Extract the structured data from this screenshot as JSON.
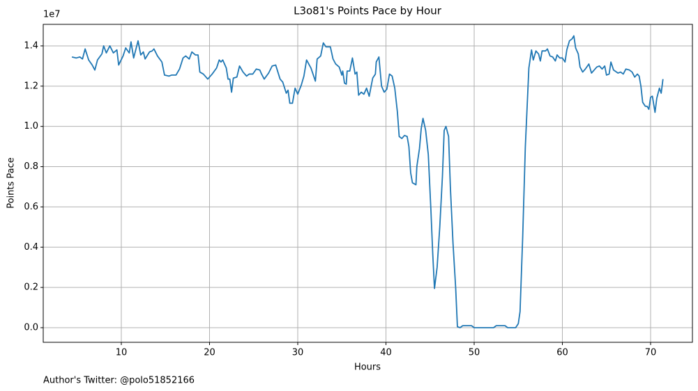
{
  "chart_data": {
    "type": "line",
    "title": "L3o81's Points Pace by Hour",
    "xlabel": "Hours",
    "ylabel": "Points Pace",
    "y_offset_label": "1e7",
    "footer": "Author's Twitter: @polo51852166",
    "color": "#1f77b4",
    "grid": true,
    "xlim": [
      1.15,
      74.74
    ],
    "ylim": [
      -0.0726,
      1.507
    ],
    "xticks": [
      10,
      20,
      30,
      40,
      50,
      60,
      70
    ],
    "yticks": [
      {
        "value": 0,
        "label": "0.0"
      },
      0.2,
      0.4,
      0.6,
      0.8,
      {
        "value": 1,
        "label": "1.0"
      },
      1.2,
      1.4
    ],
    "x": [
      4.4,
      4.9,
      5.3,
      5.6,
      5.9,
      6.3,
      6.7,
      7.0,
      7.3,
      7.8,
      8.0,
      8.3,
      8.7,
      9.1,
      9.5,
      9.7,
      10.2,
      10.5,
      10.9,
      11.1,
      11.4,
      11.9,
      12.2,
      12.5,
      12.7,
      13.2,
      13.5,
      13.7,
      14.1,
      14.6,
      14.9,
      15.4,
      15.7,
      16.2,
      16.6,
      17.0,
      17.3,
      17.7,
      18.0,
      18.4,
      18.7,
      18.9,
      19.3,
      19.8,
      20.3,
      20.8,
      21.1,
      21.3,
      21.5,
      21.9,
      22.1,
      22.3,
      22.5,
      22.7,
      23.1,
      23.4,
      23.8,
      24.2,
      24.5,
      24.9,
      25.3,
      25.7,
      25.9,
      26.2,
      26.7,
      27.1,
      27.5,
      28.0,
      28.3,
      28.7,
      28.9,
      29.1,
      29.4,
      29.7,
      30.0,
      30.4,
      30.7,
      31.0,
      31.5,
      32.0,
      32.2,
      32.6,
      32.9,
      33.2,
      33.7,
      34.0,
      34.3,
      34.7,
      35.0,
      35.1,
      35.3,
      35.5,
      35.6,
      35.9,
      36.2,
      36.5,
      36.7,
      36.9,
      37.2,
      37.5,
      37.8,
      38.1,
      38.5,
      38.8,
      38.9,
      39.2,
      39.5,
      39.8,
      40.1,
      40.4,
      40.7,
      41.0,
      41.3,
      41.5,
      41.8,
      42.1,
      42.4,
      42.6,
      42.8,
      43.0,
      43.4,
      43.5,
      43.8,
      44.0,
      44.2,
      44.5,
      44.8,
      45.1,
      45.3,
      45.5,
      45.8,
      46.1,
      46.4,
      46.6,
      46.8,
      47.1,
      47.3,
      47.6,
      47.9,
      48.1,
      48.4,
      48.7,
      49.2,
      49.7,
      50.0,
      50.8,
      51.6,
      52.2,
      52.5,
      53.0,
      53.5,
      53.8,
      54.7,
      55.0,
      55.2,
      55.5,
      55.8,
      56.2,
      56.5,
      56.7,
      57.0,
      57.3,
      57.5,
      57.7,
      58.1,
      58.3,
      58.6,
      58.9,
      59.2,
      59.4,
      59.7,
      60.0,
      60.3,
      60.5,
      60.8,
      61.1,
      61.3,
      61.5,
      61.8,
      62.0,
      62.3,
      62.6,
      63.0,
      63.3,
      63.6,
      63.9,
      64.2,
      64.5,
      64.8,
      65.0,
      65.3,
      65.5,
      65.8,
      66.3,
      66.6,
      66.9,
      67.2,
      67.6,
      67.9,
      68.2,
      68.5,
      68.7,
      68.9,
      69.1,
      69.4,
      69.6,
      69.8,
      70.0,
      70.2,
      70.5,
      70.7,
      71.0,
      71.2,
      71.4
    ],
    "values": [
      1.345,
      1.34,
      1.345,
      1.335,
      1.385,
      1.33,
      1.305,
      1.28,
      1.33,
      1.36,
      1.4,
      1.365,
      1.4,
      1.365,
      1.38,
      1.305,
      1.35,
      1.39,
      1.365,
      1.42,
      1.34,
      1.425,
      1.355,
      1.37,
      1.335,
      1.37,
      1.375,
      1.385,
      1.35,
      1.32,
      1.255,
      1.25,
      1.255,
      1.255,
      1.285,
      1.34,
      1.35,
      1.335,
      1.37,
      1.355,
      1.355,
      1.27,
      1.26,
      1.235,
      1.26,
      1.29,
      1.33,
      1.32,
      1.33,
      1.29,
      1.235,
      1.235,
      1.17,
      1.24,
      1.245,
      1.3,
      1.27,
      1.25,
      1.26,
      1.26,
      1.285,
      1.28,
      1.26,
      1.235,
      1.265,
      1.3,
      1.305,
      1.235,
      1.22,
      1.165,
      1.18,
      1.115,
      1.115,
      1.19,
      1.16,
      1.205,
      1.25,
      1.33,
      1.29,
      1.225,
      1.335,
      1.35,
      1.415,
      1.395,
      1.395,
      1.335,
      1.31,
      1.295,
      1.255,
      1.275,
      1.215,
      1.21,
      1.275,
      1.275,
      1.34,
      1.26,
      1.27,
      1.155,
      1.17,
      1.16,
      1.19,
      1.15,
      1.24,
      1.26,
      1.32,
      1.345,
      1.2,
      1.17,
      1.185,
      1.26,
      1.25,
      1.19,
      1.07,
      0.95,
      0.94,
      0.955,
      0.95,
      0.9,
      0.77,
      0.72,
      0.71,
      0.8,
      0.89,
      0.99,
      1.04,
      0.98,
      0.86,
      0.58,
      0.37,
      0.195,
      0.3,
      0.5,
      0.75,
      0.98,
      1.0,
      0.95,
      0.7,
      0.42,
      0.2,
      0.005,
      0.0,
      0.01,
      0.01,
      0.01,
      0.0,
      0.0,
      0.0,
      0.0,
      0.01,
      0.01,
      0.01,
      0.0,
      0.0,
      0.02,
      0.08,
      0.45,
      0.9,
      1.29,
      1.38,
      1.33,
      1.375,
      1.36,
      1.325,
      1.375,
      1.375,
      1.385,
      1.35,
      1.345,
      1.325,
      1.355,
      1.34,
      1.34,
      1.32,
      1.38,
      1.425,
      1.435,
      1.45,
      1.39,
      1.36,
      1.295,
      1.27,
      1.285,
      1.31,
      1.265,
      1.28,
      1.295,
      1.3,
      1.285,
      1.3,
      1.255,
      1.26,
      1.32,
      1.28,
      1.265,
      1.27,
      1.26,
      1.285,
      1.28,
      1.27,
      1.245,
      1.26,
      1.25,
      1.2,
      1.12,
      1.1,
      1.1,
      1.085,
      1.145,
      1.15,
      1.07,
      1.14,
      1.19,
      1.165,
      1.235
    ]
  }
}
